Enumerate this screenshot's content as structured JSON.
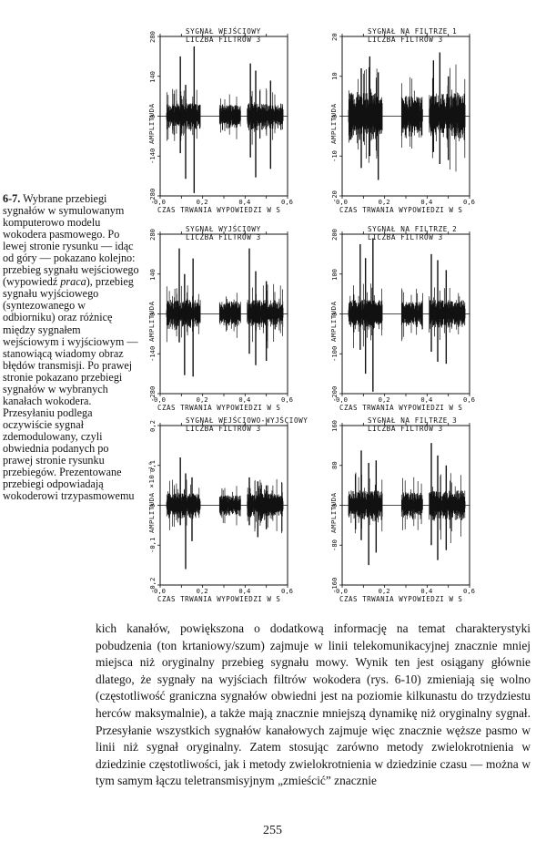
{
  "caption": {
    "figure_number": "6-7.",
    "text_before_italic": "Wybrane przebiegi sygnałów w symulowanym komputerowo modelu wokodera pasmowego. Po lewej stronie rysunku — idąc od góry — pokazano kolejno: przebieg sygnału wejściowego (wypowiedź ",
    "italic_word": "praca",
    "text_after_italic": "), przebieg sygnału wyjściowego (syntezowanego w odbiorniku) oraz różnicę między sygnałem wejściowym i wyjściowym — stanowiącą wiadomy obraz błędów transmisji. Po prawej stronie pokazano przebiegi sygnałów w wybranych kanałach wokodera. Przesyłaniu podlega oczywiście sygnał zdemodulowany, czyli obwiednia podanych po prawej stronie rysunku przebiegów. Prezentowane przebiegi odpowiadają wokoderowi trzypasmowemu"
  },
  "chart_data": [
    {
      "type": "line",
      "title": "SYGNAŁ WEJŚCIOWY",
      "subtitle": "LICZBA FILTRÓW 3",
      "xlabel": "CZAS TRWANIA WYPOWIEDZI  W  S",
      "ylabel": "AMPLITUDA",
      "xlim": [
        0,
        0.6
      ],
      "ylim": [
        -280,
        280
      ],
      "xticks": [
        "0,0",
        "0,2",
        "0,4",
        "0,6"
      ],
      "yticks": [
        "-280",
        "-140",
        "0",
        "140",
        "280"
      ],
      "segments": [
        {
          "start": 0.03,
          "end": 0.19,
          "envelope": 45
        },
        {
          "start": 0.28,
          "end": 0.38,
          "envelope": 40
        },
        {
          "start": 0.41,
          "end": 0.58,
          "envelope": 45
        }
      ],
      "spikes": [
        {
          "x": 0.095,
          "max": 210,
          "min": -130
        },
        {
          "x": 0.12,
          "max": 110,
          "min": -220
        },
        {
          "x": 0.16,
          "max": 245,
          "min": -270
        },
        {
          "x": 0.425,
          "max": 185,
          "min": -145
        },
        {
          "x": 0.45,
          "max": 160,
          "min": -215
        },
        {
          "x": 0.52,
          "max": 125,
          "min": -185
        }
      ]
    },
    {
      "type": "line",
      "title": "SYGNAŁ NA FILTRZE 1",
      "subtitle": "LICZBA FILTRÓW 3",
      "xlabel": "CZAS TRWANIA WYPOWIEDZI  W  S",
      "ylabel": "AMPLITUDA",
      "xlim": [
        0,
        0.6
      ],
      "ylim": [
        -20,
        20
      ],
      "xticks": [
        "0,0",
        "0,2",
        "0,4",
        "0,6"
      ],
      "yticks": [
        "-20",
        "-10",
        "0",
        "10",
        "20"
      ],
      "segments": [
        {
          "start": 0.03,
          "end": 0.19,
          "envelope": 6
        },
        {
          "start": 0.28,
          "end": 0.38,
          "envelope": 5
        },
        {
          "start": 0.41,
          "end": 0.58,
          "envelope": 6
        }
      ],
      "spikes": [
        {
          "x": 0.09,
          "max": 12,
          "min": -13
        },
        {
          "x": 0.13,
          "max": 15,
          "min": -10
        },
        {
          "x": 0.17,
          "max": 11,
          "min": -16
        },
        {
          "x": 0.43,
          "max": 14,
          "min": -9
        },
        {
          "x": 0.46,
          "max": 16,
          "min": -12
        },
        {
          "x": 0.5,
          "max": 10,
          "min": -11
        }
      ]
    },
    {
      "type": "line",
      "title": "SYGNAŁ WYJŚCIOWY",
      "subtitle": "LICZBA FILTRÓW 3",
      "xlabel": "CZAS TRWANIA WYPOWIEDZI  W  S",
      "ylabel": "AMPLITUDA",
      "xlim": [
        0,
        0.6
      ],
      "ylim": [
        -280,
        280
      ],
      "xticks": [
        "0,0",
        "0,2",
        "0,4",
        "0,6"
      ],
      "yticks": [
        "-280",
        "-140",
        "0",
        "140",
        "280"
      ],
      "segments": [
        {
          "start": 0.03,
          "end": 0.19,
          "envelope": 50
        },
        {
          "start": 0.28,
          "end": 0.38,
          "envelope": 45
        },
        {
          "start": 0.41,
          "end": 0.58,
          "envelope": 50
        }
      ],
      "spikes": [
        {
          "x": 0.09,
          "max": 230,
          "min": -100
        },
        {
          "x": 0.115,
          "max": 140,
          "min": -215
        },
        {
          "x": 0.155,
          "max": 195,
          "min": -220
        },
        {
          "x": 0.42,
          "max": 230,
          "min": -140
        },
        {
          "x": 0.45,
          "max": 150,
          "min": -180
        },
        {
          "x": 0.5,
          "max": 115,
          "min": -165
        }
      ]
    },
    {
      "type": "line",
      "title": "SYGNAŁ NA FILTRZE 2",
      "subtitle": "LICZBA FILTRÓW 3",
      "xlabel": "CZAS TRWANIA WYPOWIEDZI  W  S",
      "ylabel": "AMPLITUDA",
      "xlim": [
        0,
        0.6
      ],
      "ylim": [
        -200,
        200
      ],
      "xticks": [
        "0,0",
        "0,2",
        "0,4",
        "0,6"
      ],
      "yticks": [
        "-200",
        "-100",
        "0",
        "100",
        "200"
      ],
      "segments": [
        {
          "start": 0.03,
          "end": 0.19,
          "envelope": 35
        },
        {
          "start": 0.28,
          "end": 0.38,
          "envelope": 30
        },
        {
          "start": 0.41,
          "end": 0.58,
          "envelope": 35
        }
      ],
      "spikes": [
        {
          "x": 0.085,
          "max": 175,
          "min": -90
        },
        {
          "x": 0.11,
          "max": 140,
          "min": -150
        },
        {
          "x": 0.145,
          "max": 190,
          "min": -195
        },
        {
          "x": 0.42,
          "max": 150,
          "min": -95
        },
        {
          "x": 0.45,
          "max": 135,
          "min": -120
        },
        {
          "x": 0.49,
          "max": 110,
          "min": -125
        }
      ]
    },
    {
      "type": "line",
      "title": "SYGNAŁ WEJŚCIOWO-WYJŚCIOWY",
      "subtitle": "LICZBA FILTRÓW 3",
      "xlabel": "CZAS TRWANIA WYPOWIEDZI  W  S",
      "ylabel": "AMPLITUDA ×10⁻¹⁰",
      "xlim": [
        0,
        0.6
      ],
      "ylim": [
        -0.2,
        0.2
      ],
      "xticks": [
        "0,0",
        "0,2",
        "0,4",
        "0,6"
      ],
      "yticks": [
        "-0,2",
        "-0,1",
        "0",
        "0,1",
        "0,2"
      ],
      "segments": [
        {
          "start": 0.03,
          "end": 0.19,
          "envelope": 0.03
        },
        {
          "start": 0.28,
          "end": 0.38,
          "envelope": 0.025
        },
        {
          "start": 0.41,
          "end": 0.58,
          "envelope": 0.03
        }
      ],
      "spikes": [
        {
          "x": 0.095,
          "max": 0.12,
          "min": -0.05
        },
        {
          "x": 0.12,
          "max": 0.08,
          "min": -0.16
        },
        {
          "x": 0.15,
          "max": 0.07,
          "min": -0.09
        },
        {
          "x": 0.42,
          "max": 0.07,
          "min": -0.05
        },
        {
          "x": 0.46,
          "max": 0.06,
          "min": -0.08
        },
        {
          "x": 0.5,
          "max": 0.05,
          "min": -0.06
        }
      ]
    },
    {
      "type": "line",
      "title": "SYGNAŁ NA FILTRZE 3",
      "subtitle": "LICZBA FILTRÓW 3",
      "xlabel": "CZAS TRWANIA WYPOWIEDZI  W  S",
      "ylabel": "AMPLITUDA",
      "xlim": [
        0,
        0.6
      ],
      "ylim": [
        -160,
        160
      ],
      "xticks": [
        "0,0",
        "0,2",
        "0,4",
        "0,6"
      ],
      "yticks": [
        "-160",
        "-80",
        "0",
        "80",
        "160"
      ],
      "segments": [
        {
          "start": 0.03,
          "end": 0.19,
          "envelope": 30
        },
        {
          "start": 0.28,
          "end": 0.38,
          "envelope": 26
        },
        {
          "start": 0.41,
          "end": 0.58,
          "envelope": 30
        }
      ],
      "spikes": [
        {
          "x": 0.09,
          "max": 110,
          "min": -70
        },
        {
          "x": 0.125,
          "max": 85,
          "min": -120
        },
        {
          "x": 0.16,
          "max": 90,
          "min": -95
        },
        {
          "x": 0.42,
          "max": 125,
          "min": -80
        },
        {
          "x": 0.45,
          "max": 100,
          "min": -110
        },
        {
          "x": 0.49,
          "max": 80,
          "min": -90
        }
      ]
    }
  ],
  "body_text": "kich kanałów, powiększona o dodatkową informację na temat charakterystyki pobudzenia (ton krtaniowy/szum) zajmuje w linii telekomunikacyjnej znacznie mniej miejsca niż oryginalny przebieg sygnału mowy. Wynik ten jest osiągany głównie dlatego, że sygnały na wyjściach filtrów wokodera (rys. 6-10) zmieniają się wolno (częstotliwość graniczna sygnałów obwiedni jest na poziomie kilkunastu do trzydziestu herców maksymalnie), a także mają znacznie mniejszą dynamikę niż oryginalny sygnał. Przesyłanie wszystkich sygnałów kanałowych zajmuje więc znacznie węższe pasmo w linii niż sygnał oryginalny. Zatem stosując zarówno metody zwielokrotnienia w dziedzinie częstotliwości, jak i metody zwielokrotnienia w dziedzinie czasu — można w tym samym łączu teletransmisyjnym „zmieścić” znacznie",
  "page_number": "255"
}
